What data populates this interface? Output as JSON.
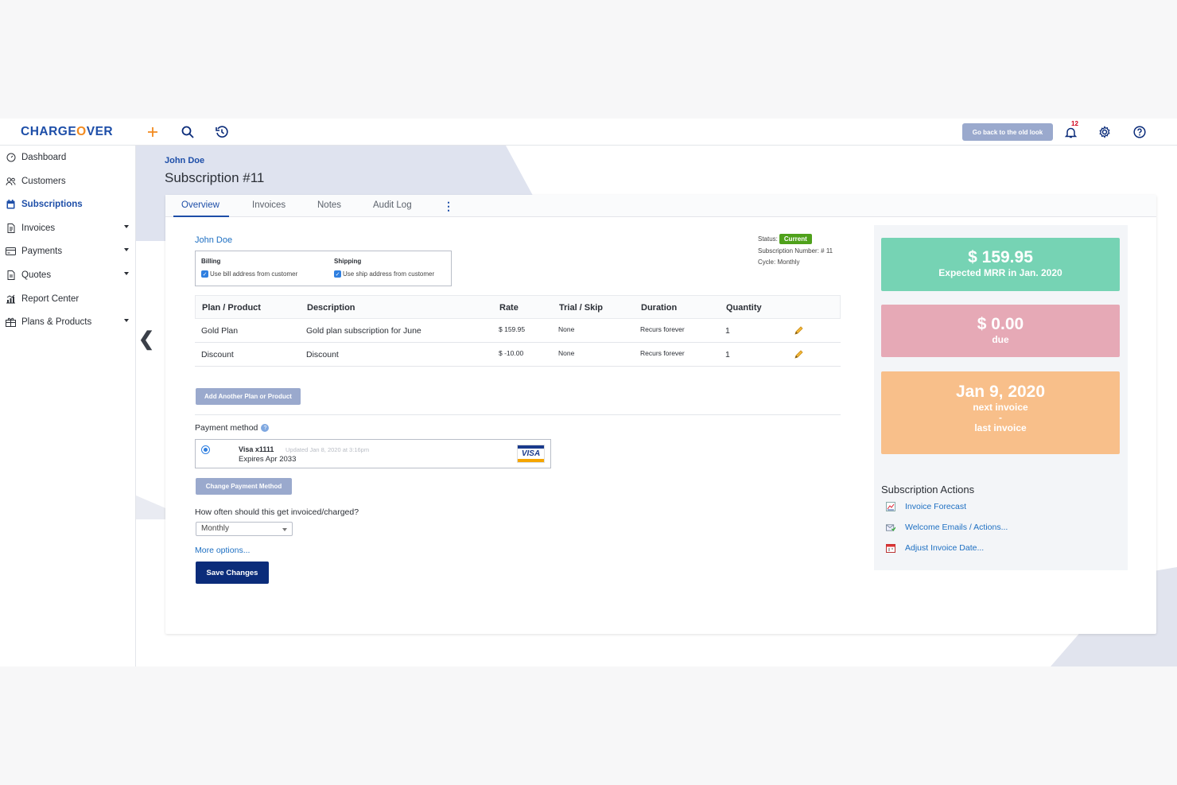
{
  "brand": {
    "logo_pre": "CHARGE",
    "logo_o": "O",
    "logo_post": "VER"
  },
  "topbar": {
    "old_look_label": "Go back to the old look",
    "notification_count": "12"
  },
  "sidebar": {
    "items": [
      {
        "label": "Dashboard",
        "icon": "dashboard-icon"
      },
      {
        "label": "Customers",
        "icon": "customers-icon"
      },
      {
        "label": "Subscriptions",
        "icon": "calendar-icon"
      },
      {
        "label": "Invoices",
        "icon": "invoice-icon"
      },
      {
        "label": "Payments",
        "icon": "payments-icon"
      },
      {
        "label": "Quotes",
        "icon": "quote-icon"
      },
      {
        "label": "Report Center",
        "icon": "report-icon"
      },
      {
        "label": "Plans & Products",
        "icon": "plans-icon"
      }
    ]
  },
  "header": {
    "breadcrumb": "John Doe",
    "title": "Subscription #11"
  },
  "tabs": [
    "Overview",
    "Invoices",
    "Notes",
    "Audit Log"
  ],
  "customer": {
    "name": "John Doe",
    "billing_label": "Billing",
    "billing_check": "Use bill address from customer",
    "shipping_label": "Shipping",
    "shipping_check": "Use ship address from customer"
  },
  "status": {
    "status_label": "Status:",
    "status_value": "Current",
    "sub_number": "Subscription Number: # 11",
    "cycle": "Cycle: Monthly"
  },
  "table": {
    "headers": [
      "Plan / Product",
      "Description",
      "Rate",
      "Trial / Skip",
      "Duration",
      "Quantity"
    ],
    "rows": [
      {
        "plan": "Gold Plan",
        "desc": "Gold plan subscription for June",
        "rate": "$ 159.95",
        "trial": "None",
        "duration": "Recurs forever",
        "qty": "1"
      },
      {
        "plan": "Discount",
        "desc": "Discount",
        "rate": "$ -10.00",
        "trial": "None",
        "duration": "Recurs forever",
        "qty": "1"
      }
    ]
  },
  "buttons": {
    "add_plan": "Add Another Plan or Product",
    "change_payment": "Change Payment Method",
    "save": "Save Changes"
  },
  "payment": {
    "label": "Payment method",
    "card_name": "Visa x1111",
    "updated": "Updated Jan 8, 2020 at 3:16pm",
    "expires": "Expires Apr 2033",
    "brand": "VISA"
  },
  "frequency": {
    "label": "How often should this get invoiced/charged?",
    "value": "Monthly",
    "more": "More options..."
  },
  "stats": [
    {
      "big": "$ 159.95",
      "sub": "Expected MRR in Jan. 2020",
      "color": "#76d3b4"
    },
    {
      "big": "$ 0.00",
      "sub": "due",
      "color": "#e6a9b6"
    },
    {
      "big": "Jan 9, 2020",
      "sub": "next invoice",
      "dash": "-",
      "sub2": "last invoice",
      "color": "#f8bf8a"
    }
  ],
  "actions": {
    "title": "Subscription Actions",
    "items": [
      "Invoice Forecast",
      "Welcome Emails / Actions...",
      "Adjust Invoice Date..."
    ]
  }
}
